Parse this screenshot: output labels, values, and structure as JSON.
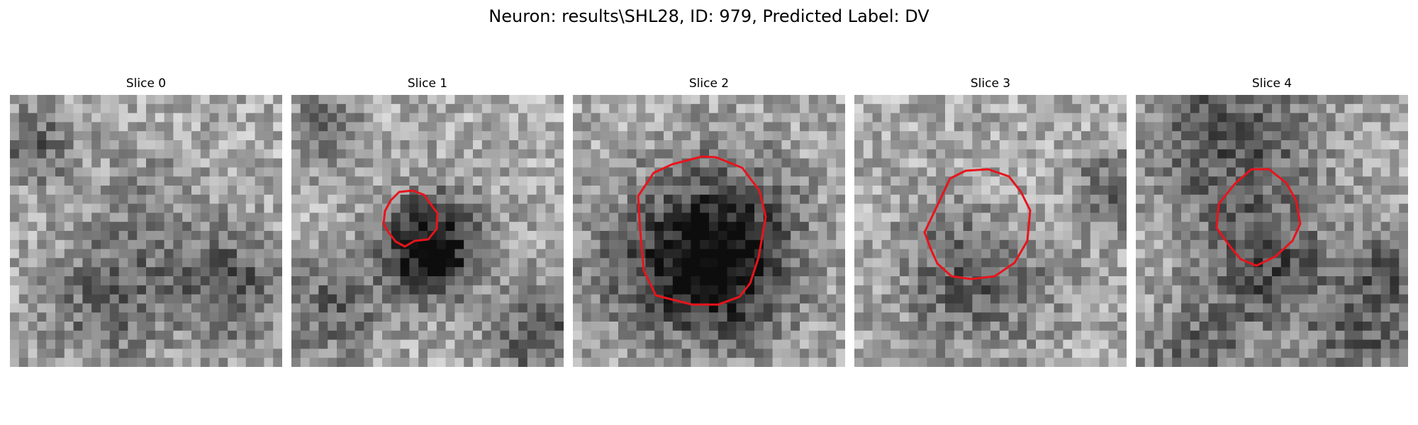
{
  "figure": {
    "title": "Neuron: results\\SHL28, ID: 979, Predicted Label: DV"
  },
  "slices": [
    {
      "title": "Slice 0",
      "has_contour": false
    },
    {
      "title": "Slice 1",
      "has_contour": true
    },
    {
      "title": "Slice 2",
      "has_contour": true
    },
    {
      "title": "Slice 3",
      "has_contour": true
    },
    {
      "title": "Slice 4",
      "has_contour": true
    }
  ],
  "colors": {
    "contour": "#e8141c",
    "background": "#ffffff"
  }
}
